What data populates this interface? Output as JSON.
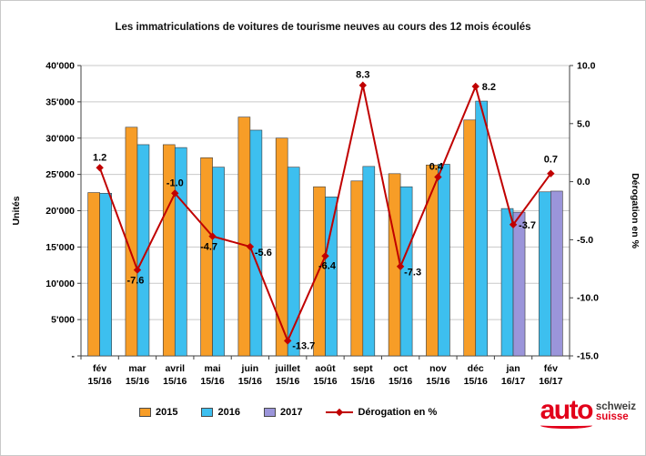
{
  "title": "Les immatriculations de voitures de tourisme neuves au cours des 12 mois écoulés",
  "chart_data": {
    "type": "combo-bar-line",
    "categories": [
      "fév",
      "mar",
      "avril",
      "mai",
      "juin",
      "juillet",
      "août",
      "sept",
      "oct",
      "nov",
      "déc",
      "jan",
      "fév"
    ],
    "category_periods": [
      "15/16",
      "15/16",
      "15/16",
      "15/16",
      "15/16",
      "15/16",
      "15/16",
      "15/16",
      "15/16",
      "15/16",
      "15/16",
      "16/17",
      "16/17"
    ],
    "bar_series": [
      {
        "name": "2015",
        "color": "#F79D27",
        "values": [
          22500,
          31500,
          29100,
          27300,
          32900,
          30000,
          23300,
          24100,
          25100,
          26300,
          32500,
          null,
          null
        ]
      },
      {
        "name": "2016",
        "color": "#3DBFEF",
        "values": [
          22400,
          29100,
          28700,
          26000,
          31100,
          26000,
          21900,
          26100,
          23300,
          26400,
          35100,
          20300,
          22600
        ]
      },
      {
        "name": "2017",
        "color": "#9B95DA",
        "values": [
          null,
          null,
          null,
          null,
          null,
          null,
          null,
          null,
          null,
          null,
          null,
          19800,
          22700
        ]
      }
    ],
    "line_series": {
      "name": "Dérogation en %",
      "color": "#C00000",
      "values": [
        1.2,
        -7.6,
        -1.0,
        -4.7,
        -5.6,
        -13.7,
        -6.4,
        8.3,
        -7.3,
        0.4,
        8.2,
        -3.7,
        0.7
      ],
      "point_labels": [
        "1.2",
        "-7.6",
        "-1.0",
        "-4.7",
        "-5.6",
        "-13.7",
        "-6.4",
        "8.3",
        "-7.3",
        "0.4",
        "8.2",
        "-3.7",
        "0.7"
      ]
    },
    "left_axis": {
      "label": "Unités",
      "min": 0,
      "max": 40000,
      "step": 5000,
      "tick_labels": [
        "-",
        "5'000",
        "10'000",
        "15'000",
        "20'000",
        "25'000",
        "30'000",
        "35'000",
        "40'000"
      ]
    },
    "right_axis": {
      "label": "Dérogation en %",
      "min": -15,
      "max": 10,
      "step": 5,
      "tick_labels": [
        "-15.0",
        "-10.0",
        "-5.0",
        "0.0",
        "5.0",
        "10.0"
      ]
    },
    "grid": true,
    "legend_position": "bottom"
  },
  "logo": {
    "word": "auto",
    "line1": "schweiz",
    "line2": "suisse",
    "accent": "#E2001A",
    "gray": "#3C3C3B"
  }
}
